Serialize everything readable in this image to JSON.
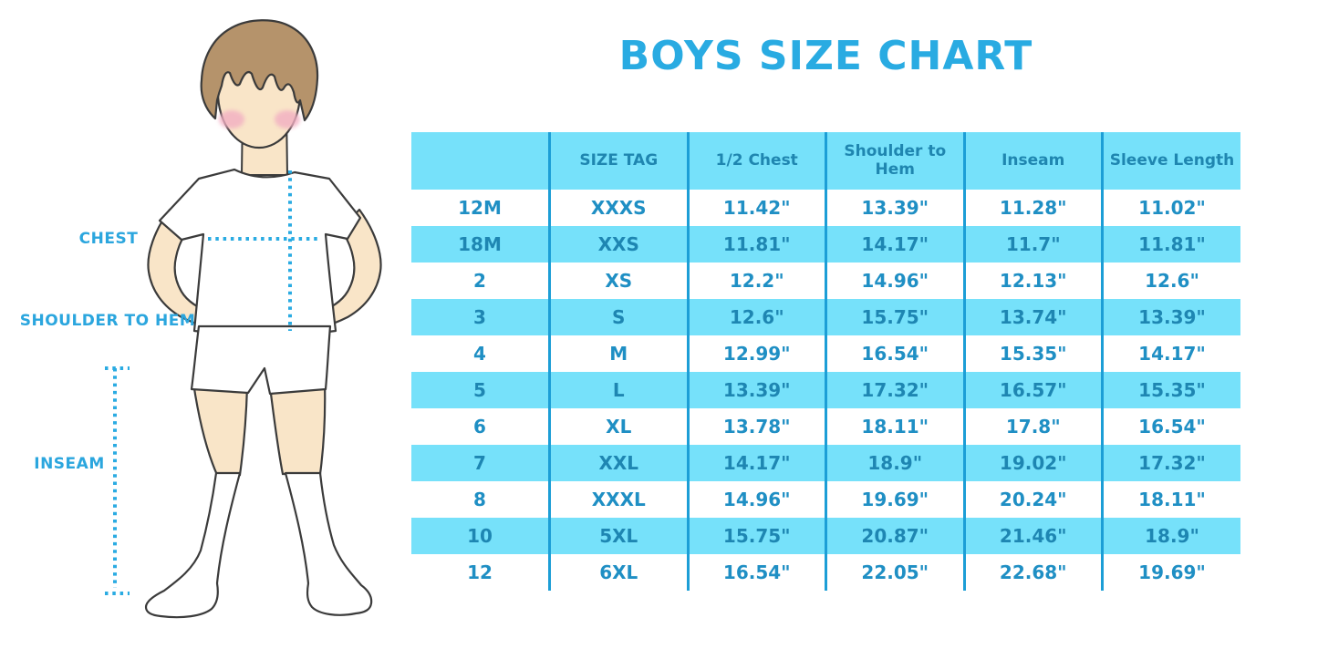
{
  "title": "BOYS SIZE CHART",
  "figure": {
    "description": "Line illustration of a boy with brown hair wearing a white t-shirt, white shorts and white knee socks, hands on hips",
    "labels": {
      "chest": "CHEST",
      "shoulder_to_hem": "SHOULDER TO HEM",
      "inseam": "INSEAM"
    }
  },
  "colors": {
    "accent_blue": "#29ABE2",
    "label_blue": "#2BA6DE",
    "dotted_line_blue": "#2AABE2",
    "table_stripe_cyan": "#76E1FA",
    "table_divider_blue": "#1C9ED6",
    "table_header_text": "#1F86B0",
    "table_cell_text": "#1F8FC4",
    "hair_brown": "#B5936B",
    "skin": "#F9E5C8",
    "blush_pink": "#F2AFC2",
    "outline": "#3B3B3B"
  },
  "chart_data": {
    "type": "table",
    "title": "BOYS SIZE CHART",
    "columns": [
      "",
      "SIZE TAG",
      "1/2 Chest",
      "Shoulder to Hem",
      "Inseam",
      "Sleeve Length"
    ],
    "rows": [
      [
        "12M",
        "XXXS",
        "11.42\"",
        "13.39\"",
        "11.28\"",
        "11.02\""
      ],
      [
        "18M",
        "XXS",
        "11.81\"",
        "14.17\"",
        "11.7\"",
        "11.81\""
      ],
      [
        "2",
        "XS",
        "12.2\"",
        "14.96\"",
        "12.13\"",
        "12.6\""
      ],
      [
        "3",
        "S",
        "12.6\"",
        "15.75\"",
        "13.74\"",
        "13.39\""
      ],
      [
        "4",
        "M",
        "12.99\"",
        "16.54\"",
        "15.35\"",
        "14.17\""
      ],
      [
        "5",
        "L",
        "13.39\"",
        "17.32\"",
        "16.57\"",
        "15.35\""
      ],
      [
        "6",
        "XL",
        "13.78\"",
        "18.11\"",
        "17.8\"",
        "16.54\""
      ],
      [
        "7",
        "XXL",
        "14.17\"",
        "18.9\"",
        "19.02\"",
        "17.32\""
      ],
      [
        "8",
        "XXXL",
        "14.96\"",
        "19.69\"",
        "20.24\"",
        "18.11\""
      ],
      [
        "10",
        "5XL",
        "15.75\"",
        "20.87\"",
        "21.46\"",
        "18.9\""
      ],
      [
        "12",
        "6XL",
        "16.54\"",
        "22.05\"",
        "22.68\"",
        "19.69\""
      ]
    ],
    "layout": {
      "header_background": "cyan",
      "row_striping": "white/cyan alternating",
      "grid": "vertical dividers only"
    }
  }
}
